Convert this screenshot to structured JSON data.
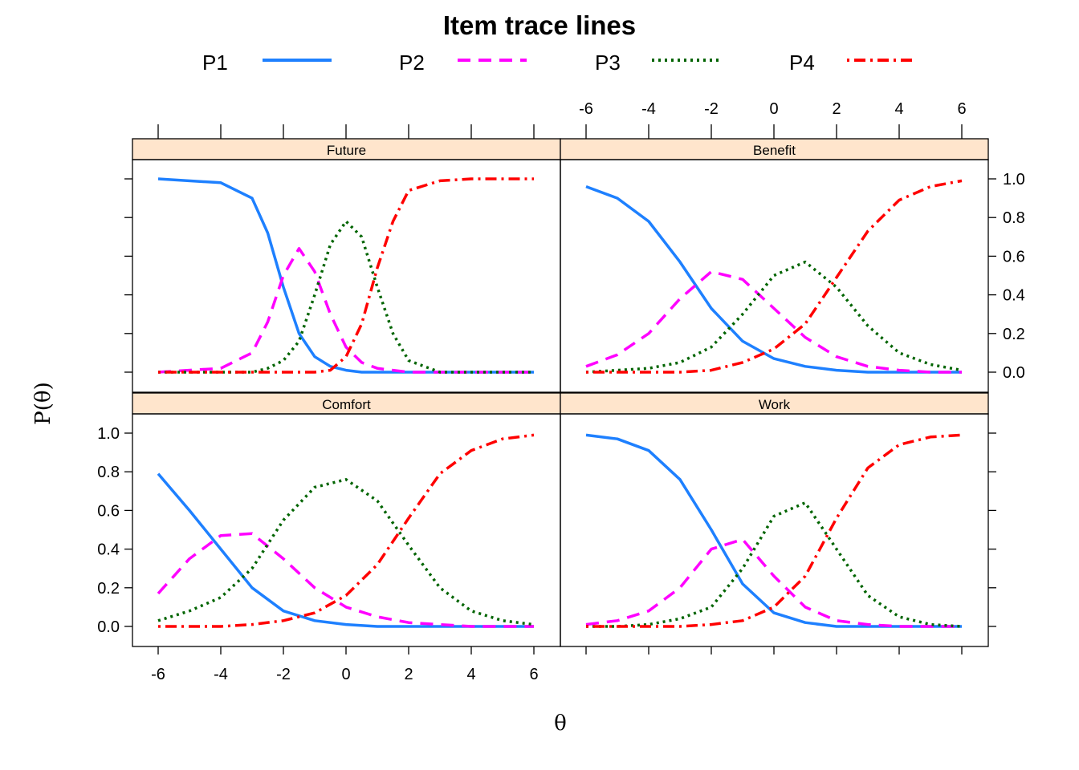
{
  "chart_data": {
    "type": "line",
    "title": "Item trace lines",
    "xlabel": "θ",
    "ylabel": "P(θ)",
    "xlim": [
      -6.8,
      6.8
    ],
    "ylim": [
      -0.15,
      1.1
    ],
    "x_ticks": [
      -6,
      -4,
      -2,
      0,
      2,
      4,
      6
    ],
    "y_ticks": [
      0.0,
      0.2,
      0.4,
      0.6,
      0.8,
      1.0
    ],
    "legend": {
      "position": "top",
      "entries": [
        {
          "name": "P1",
          "color": "#1e80ff",
          "dash": "solid"
        },
        {
          "name": "P2",
          "color": "#ff00ff",
          "dash": "dashed"
        },
        {
          "name": "P3",
          "color": "#006400",
          "dash": "dotted"
        },
        {
          "name": "P4",
          "color": "#ff0000",
          "dash": "dotdash"
        }
      ]
    },
    "panels": [
      {
        "name": "Future",
        "x": [
          -6,
          -4,
          -3,
          -2.5,
          -2,
          -1.5,
          -1,
          -0.5,
          0,
          0.5,
          1,
          1.5,
          2,
          3,
          4,
          6
        ],
        "series": [
          {
            "name": "P1",
            "values": [
              1.0,
              0.98,
              0.9,
              0.72,
              0.44,
              0.2,
              0.08,
              0.03,
              0.01,
              0.0,
              0.0,
              0.0,
              0.0,
              0.0,
              0.0,
              0.0
            ]
          },
          {
            "name": "P2",
            "values": [
              0.0,
              0.02,
              0.1,
              0.26,
              0.5,
              0.64,
              0.52,
              0.3,
              0.13,
              0.05,
              0.02,
              0.01,
              0.0,
              0.0,
              0.0,
              0.0
            ]
          },
          {
            "name": "P3",
            "values": [
              0.0,
              0.0,
              0.0,
              0.02,
              0.06,
              0.16,
              0.4,
              0.66,
              0.78,
              0.7,
              0.44,
              0.2,
              0.06,
              0.0,
              0.0,
              0.0
            ]
          },
          {
            "name": "P4",
            "values": [
              0.0,
              0.0,
              0.0,
              0.0,
              0.0,
              0.0,
              0.0,
              0.01,
              0.08,
              0.25,
              0.54,
              0.78,
              0.94,
              0.99,
              1.0,
              1.0
            ]
          }
        ]
      },
      {
        "name": "Benefit",
        "x": [
          -6,
          -5,
          -4,
          -3,
          -2,
          -1,
          0,
          1,
          2,
          3,
          4,
          5,
          6
        ],
        "series": [
          {
            "name": "P1",
            "values": [
              0.96,
              0.9,
              0.78,
              0.57,
              0.33,
              0.16,
              0.07,
              0.03,
              0.01,
              0.0,
              0.0,
              0.0,
              0.0
            ]
          },
          {
            "name": "P2",
            "values": [
              0.03,
              0.09,
              0.2,
              0.38,
              0.52,
              0.48,
              0.33,
              0.18,
              0.08,
              0.03,
              0.01,
              0.0,
              0.0
            ]
          },
          {
            "name": "P3",
            "values": [
              0.0,
              0.01,
              0.02,
              0.05,
              0.13,
              0.3,
              0.5,
              0.57,
              0.44,
              0.24,
              0.1,
              0.04,
              0.01
            ]
          },
          {
            "name": "P4",
            "values": [
              0.0,
              0.0,
              0.0,
              0.0,
              0.01,
              0.05,
              0.12,
              0.25,
              0.49,
              0.73,
              0.89,
              0.96,
              0.99
            ]
          }
        ]
      },
      {
        "name": "Comfort",
        "x": [
          -6,
          -5,
          -4,
          -3,
          -2,
          -1,
          0,
          1,
          2,
          3,
          4,
          5,
          6
        ],
        "series": [
          {
            "name": "P1",
            "values": [
              0.79,
              0.6,
              0.4,
              0.2,
              0.08,
              0.03,
              0.01,
              0.0,
              0.0,
              0.0,
              0.0,
              0.0,
              0.0
            ]
          },
          {
            "name": "P2",
            "values": [
              0.17,
              0.35,
              0.47,
              0.48,
              0.35,
              0.2,
              0.1,
              0.05,
              0.02,
              0.01,
              0.0,
              0.0,
              0.0
            ]
          },
          {
            "name": "P3",
            "values": [
              0.03,
              0.08,
              0.15,
              0.3,
              0.55,
              0.72,
              0.76,
              0.65,
              0.42,
              0.2,
              0.08,
              0.03,
              0.01
            ]
          },
          {
            "name": "P4",
            "values": [
              0.0,
              0.0,
              0.0,
              0.01,
              0.03,
              0.07,
              0.16,
              0.32,
              0.56,
              0.79,
              0.91,
              0.97,
              0.99
            ]
          }
        ]
      },
      {
        "name": "Work",
        "x": [
          -6,
          -5,
          -4,
          -3,
          -2,
          -1,
          0,
          1,
          2,
          3,
          4,
          5,
          6
        ],
        "series": [
          {
            "name": "P1",
            "values": [
              0.99,
              0.97,
              0.91,
              0.76,
              0.5,
              0.22,
              0.07,
              0.02,
              0.0,
              0.0,
              0.0,
              0.0,
              0.0
            ]
          },
          {
            "name": "P2",
            "values": [
              0.01,
              0.03,
              0.08,
              0.2,
              0.4,
              0.45,
              0.26,
              0.1,
              0.03,
              0.01,
              0.0,
              0.0,
              0.0
            ]
          },
          {
            "name": "P3",
            "values": [
              0.0,
              0.0,
              0.01,
              0.04,
              0.1,
              0.3,
              0.57,
              0.64,
              0.4,
              0.16,
              0.05,
              0.01,
              0.0
            ]
          },
          {
            "name": "P4",
            "values": [
              0.0,
              0.0,
              0.0,
              0.0,
              0.01,
              0.03,
              0.1,
              0.26,
              0.56,
              0.82,
              0.94,
              0.98,
              0.99
            ]
          }
        ]
      }
    ]
  }
}
